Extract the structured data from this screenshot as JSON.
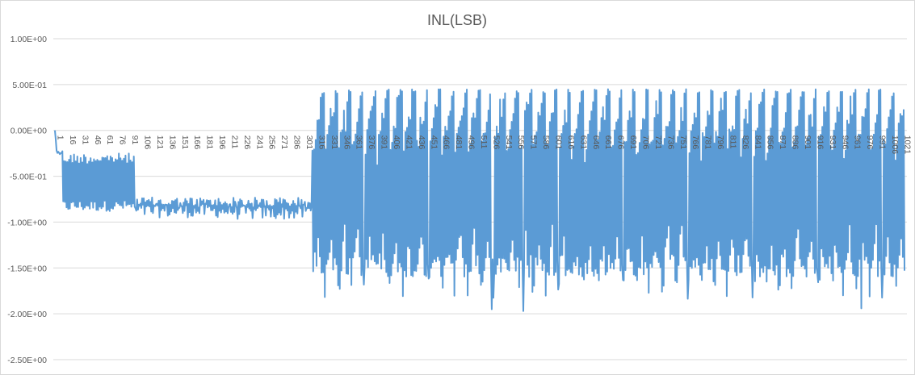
{
  "chart_data": {
    "type": "line",
    "title": "INL(LSB)",
    "xlabel": "",
    "ylabel": "",
    "ylim": [
      -2.5,
      1.0
    ],
    "ytick_values": [
      1.0,
      0.5,
      0.0,
      -0.5,
      -1.0,
      -1.5,
      -2.0,
      -2.5
    ],
    "ytick_labels": [
      "1.00E+00",
      "5.00E-01",
      "0.00E+00",
      "-5.00E-01",
      "-1.00E+00",
      "-1.50E+00",
      "-2.00E+00",
      "-2.50E+00"
    ],
    "x_range": [
      1,
      1024
    ],
    "xtick_labels": [
      "1",
      "16",
      "31",
      "46",
      "61",
      "76",
      "91",
      "106",
      "121",
      "136",
      "151",
      "166",
      "181",
      "196",
      "211",
      "226",
      "241",
      "256",
      "271",
      "286",
      "301",
      "316",
      "331",
      "346",
      "361",
      "376",
      "391",
      "406",
      "421",
      "436",
      "451",
      "466",
      "481",
      "496",
      "511",
      "526",
      "541",
      "556",
      "571",
      "586",
      "601",
      "616",
      "631",
      "646",
      "661",
      "676",
      "691",
      "706",
      "721",
      "736",
      "751",
      "766",
      "781",
      "796",
      "811",
      "826",
      "841",
      "856",
      "871",
      "886",
      "901",
      "916",
      "931",
      "946",
      "961",
      "976",
      "991",
      "1006",
      "1021"
    ],
    "grid": true,
    "legend": "none",
    "series": [
      {
        "color": "#5b9bd5",
        "segments": [
          {
            "from": 1,
            "to": 3,
            "values": [
              0.0,
              -0.1,
              -0.22
            ]
          },
          {
            "from": 4,
            "to": 10,
            "upper": -0.22,
            "lower": -0.25
          },
          {
            "from": 11,
            "to": 96,
            "upper": -0.25,
            "lower": -0.88
          },
          {
            "from": 97,
            "to": 310,
            "upper": -0.68,
            "lower": -1.0
          },
          {
            "from": 311,
            "to": 1024,
            "upper": 0.45,
            "lower": -1.85,
            "mid_band": [
              -0.6,
              -1.45
            ]
          }
        ],
        "notable_minima": [
          -1.95,
          -1.97,
          -1.94
        ]
      }
    ]
  }
}
